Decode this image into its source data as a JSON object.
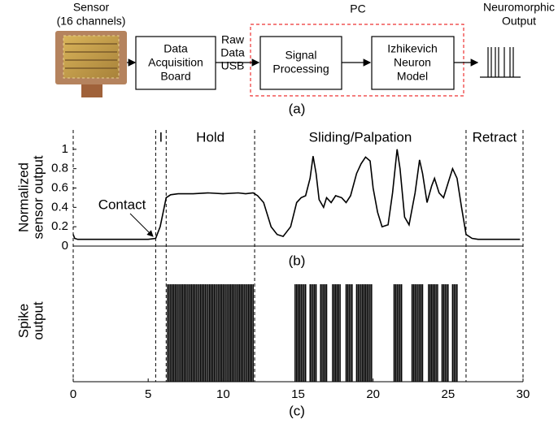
{
  "diagram": {
    "title": "PC",
    "nodes": [
      {
        "label": [
          "Sensor",
          "(16 channels)"
        ]
      },
      {
        "label": [
          "Data",
          "Acquisition",
          "Board"
        ]
      },
      {
        "label": [
          "Signal",
          "Processing"
        ]
      },
      {
        "label": [
          "Izhikevich",
          "Neuron",
          "Model"
        ]
      },
      {
        "label": [
          "Neuromorphic",
          "Output"
        ]
      }
    ],
    "link_label": [
      "Raw",
      "Data",
      "USB"
    ],
    "caption": "(a)"
  },
  "chart_data": [
    {
      "type": "line",
      "caption": "(b)",
      "ylabel": [
        "Normalized",
        "sensor output"
      ],
      "color": "#000000",
      "x": [
        0,
        0.1,
        0.3,
        1,
        2,
        3,
        4,
        5,
        5.5,
        5.8,
        6.0,
        6.2,
        6.5,
        7,
        8,
        9,
        10,
        11,
        11.5,
        12.0,
        12.3,
        12.7,
        13.2,
        13.6,
        14.0,
        14.5,
        14.9,
        15.2,
        15.5,
        15.8,
        16.0,
        16.2,
        16.4,
        16.7,
        16.9,
        17.2,
        17.5,
        17.9,
        18.2,
        18.5,
        18.9,
        19.2,
        19.5,
        19.8,
        20.0,
        20.3,
        20.6,
        21.0,
        21.3,
        21.6,
        21.8,
        22.1,
        22.4,
        22.8,
        23.1,
        23.3,
        23.6,
        23.9,
        24.1,
        24.4,
        24.7,
        25.0,
        25.3,
        25.6,
        25.9,
        26.2,
        26.6,
        27,
        28,
        29,
        29.8
      ],
      "values": [
        0.12,
        0.08,
        0.07,
        0.07,
        0.07,
        0.07,
        0.07,
        0.07,
        0.08,
        0.2,
        0.35,
        0.5,
        0.53,
        0.54,
        0.54,
        0.55,
        0.54,
        0.55,
        0.54,
        0.55,
        0.52,
        0.45,
        0.2,
        0.12,
        0.1,
        0.2,
        0.45,
        0.5,
        0.52,
        0.7,
        0.93,
        0.75,
        0.48,
        0.4,
        0.5,
        0.45,
        0.52,
        0.5,
        0.45,
        0.52,
        0.75,
        0.85,
        0.92,
        0.88,
        0.6,
        0.35,
        0.2,
        0.22,
        0.55,
        1.0,
        0.8,
        0.3,
        0.22,
        0.55,
        0.89,
        0.75,
        0.45,
        0.62,
        0.7,
        0.55,
        0.5,
        0.65,
        0.8,
        0.7,
        0.4,
        0.12,
        0.08,
        0.07,
        0.07,
        0.07,
        0.07
      ],
      "xlim": [
        0,
        30
      ],
      "ylim": [
        0,
        1.2
      ],
      "yticks": [
        0,
        0.2,
        0.4,
        0.6,
        0.8,
        1
      ],
      "boundaries": [
        0,
        5.5,
        6.2,
        12.1,
        26.2,
        30
      ],
      "region_labels": [
        "I",
        "Hold",
        "Sliding/Palpation",
        "Retract"
      ],
      "annotation": "Contact"
    },
    {
      "type": "raster",
      "caption": "(c)",
      "ylabel": [
        "Spike",
        "output"
      ],
      "color": "#000000",
      "xlim": [
        0,
        30
      ],
      "xticks": [
        0,
        5,
        10,
        15,
        20,
        25,
        30
      ],
      "spikes": [
        6.3,
        6.4,
        6.5,
        6.6,
        6.7,
        6.8,
        6.9,
        7.0,
        7.1,
        7.2,
        7.3,
        7.4,
        7.5,
        7.6,
        7.7,
        7.8,
        7.9,
        8.0,
        8.1,
        8.2,
        8.3,
        8.4,
        8.5,
        8.6,
        8.7,
        8.8,
        8.9,
        9.0,
        9.1,
        9.2,
        9.3,
        9.4,
        9.5,
        9.6,
        9.7,
        9.8,
        9.9,
        10.0,
        10.1,
        10.2,
        10.3,
        10.4,
        10.5,
        10.6,
        10.7,
        10.8,
        10.9,
        11.0,
        11.1,
        11.2,
        11.3,
        11.4,
        11.5,
        11.6,
        11.7,
        11.8,
        11.9,
        12.0,
        14.8,
        14.9,
        15.0,
        15.1,
        15.2,
        15.3,
        15.4,
        15.5,
        15.8,
        15.9,
        16.0,
        16.1,
        16.2,
        16.5,
        16.6,
        16.7,
        16.8,
        16.9,
        17.3,
        17.4,
        17.5,
        17.6,
        17.7,
        17.8,
        18.2,
        18.3,
        18.4,
        18.5,
        18.6,
        18.9,
        19.0,
        19.1,
        19.2,
        19.3,
        19.4,
        19.5,
        19.6,
        19.7,
        19.8,
        19.9,
        21.4,
        21.5,
        21.6,
        21.7,
        21.8,
        21.9,
        22.6,
        22.7,
        22.8,
        22.9,
        23.0,
        23.1,
        23.2,
        23.3,
        23.7,
        23.8,
        23.9,
        24.0,
        24.1,
        24.2,
        24.3,
        24.6,
        24.7,
        24.8,
        24.9,
        25.0,
        25.3,
        25.4,
        25.5,
        25.6
      ]
    }
  ]
}
